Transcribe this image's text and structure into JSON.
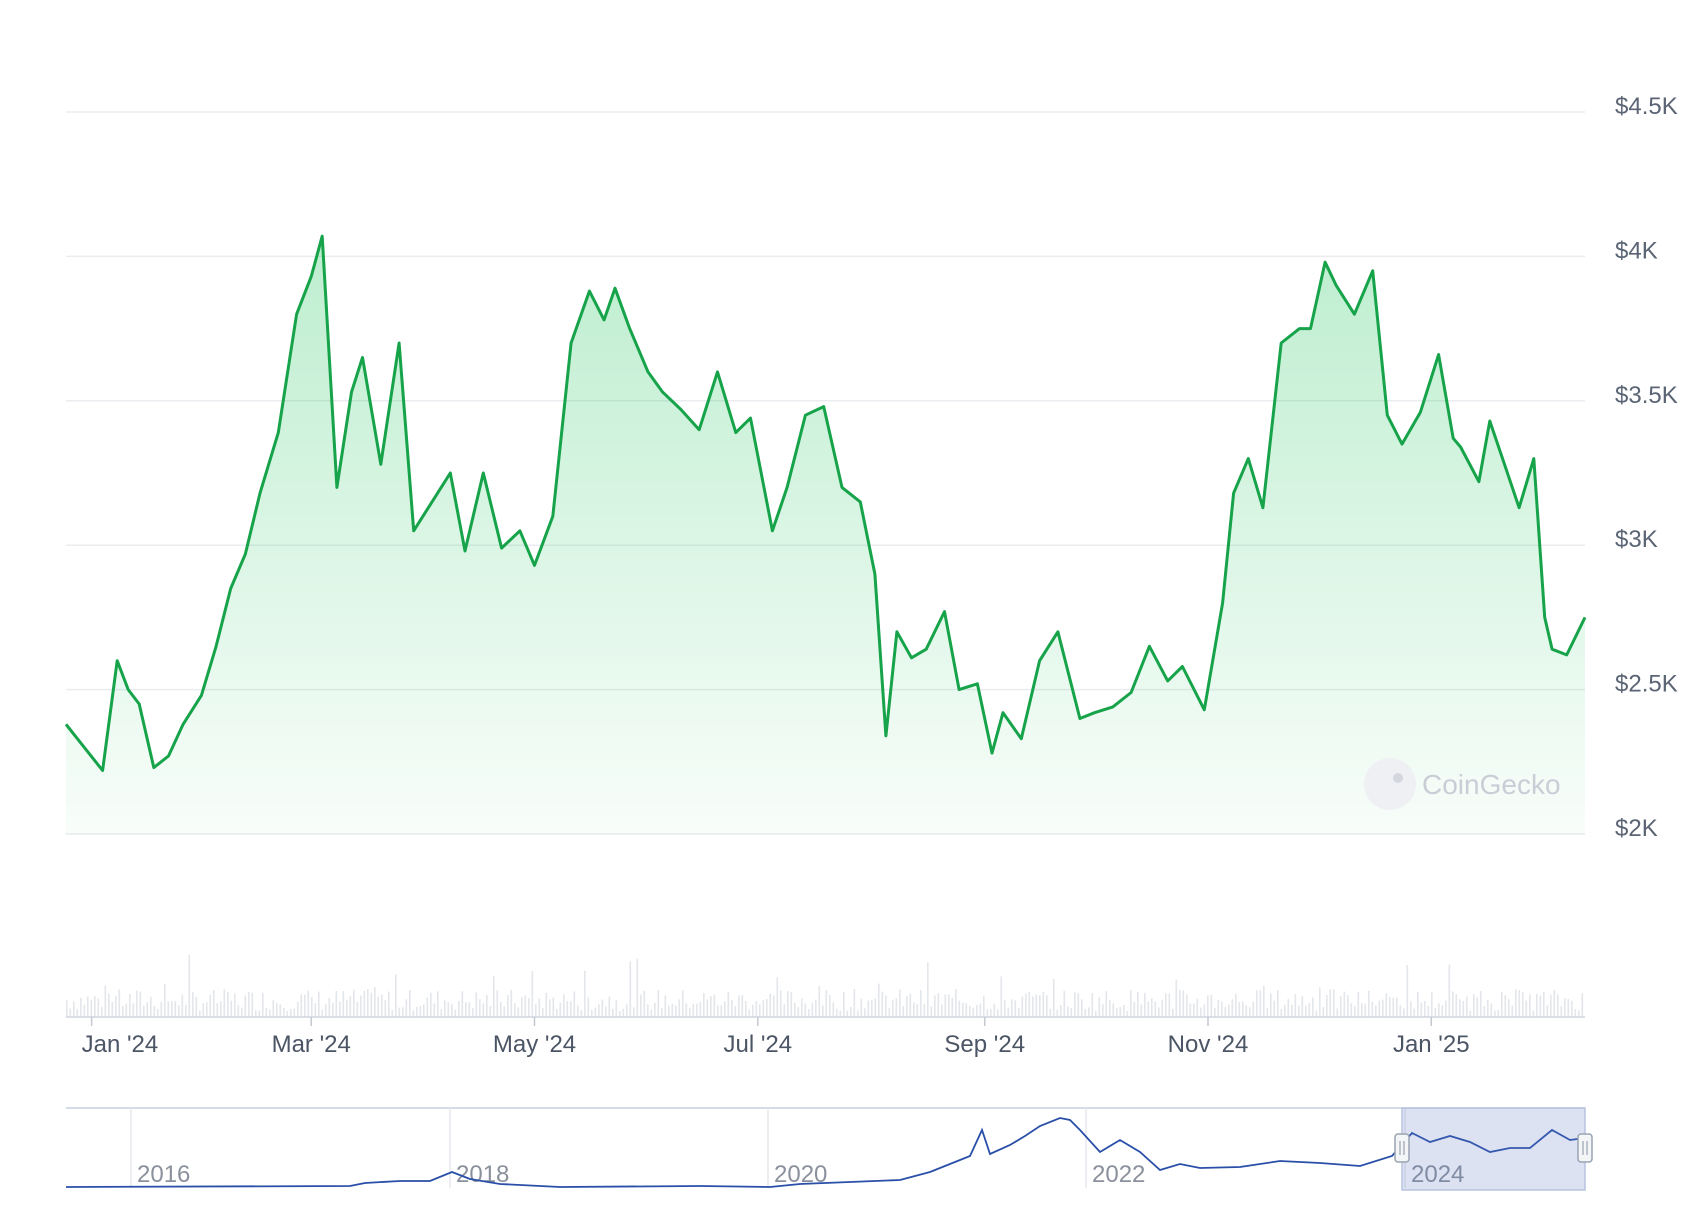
{
  "chart_data": {
    "type": "area",
    "y_axis": {
      "ticks": [
        "$2K",
        "$2.5K",
        "$3K",
        "$3.5K",
        "$4K",
        "$4.5K"
      ],
      "tick_values": [
        2000,
        2500,
        3000,
        3500,
        4000,
        4500
      ],
      "range": [
        2000,
        4500
      ],
      "position": "right",
      "grid": true
    },
    "x_axis": {
      "ticks": [
        "Jan '24",
        "Mar '24",
        "May '24",
        "Jul '24",
        "Sep '24",
        "Nov '24",
        "Jan '25"
      ],
      "tick_dates": [
        "2024-01-01",
        "2024-03-01",
        "2024-05-01",
        "2024-07-01",
        "2024-09-01",
        "2024-11-01",
        "2025-01-01"
      ],
      "range": [
        "2023-12-25",
        "2025-02-12"
      ]
    },
    "series": [
      {
        "color": "#16a34a",
        "fill": "#22c55e",
        "x": [
          "2023-12-25",
          "2023-12-30",
          "2024-01-04",
          "2024-01-08",
          "2024-01-11",
          "2024-01-14",
          "2024-01-18",
          "2024-01-22",
          "2024-01-26",
          "2024-01-31",
          "2024-02-04",
          "2024-02-08",
          "2024-02-12",
          "2024-02-16",
          "2024-02-21",
          "2024-02-26",
          "2024-03-01",
          "2024-03-04",
          "2024-03-08",
          "2024-03-12",
          "2024-03-15",
          "2024-03-20",
          "2024-03-25",
          "2024-03-29",
          "2024-04-03",
          "2024-04-08",
          "2024-04-12",
          "2024-04-17",
          "2024-04-22",
          "2024-04-27",
          "2024-05-01",
          "2024-05-06",
          "2024-05-11",
          "2024-05-16",
          "2024-05-20",
          "2024-05-23",
          "2024-05-27",
          "2024-06-01",
          "2024-06-05",
          "2024-06-10",
          "2024-06-15",
          "2024-06-20",
          "2024-06-25",
          "2024-06-29",
          "2024-07-05",
          "2024-07-09",
          "2024-07-14",
          "2024-07-19",
          "2024-07-24",
          "2024-07-29",
          "2024-08-02",
          "2024-08-05",
          "2024-08-08",
          "2024-08-12",
          "2024-08-16",
          "2024-08-21",
          "2024-08-25",
          "2024-08-30",
          "2024-09-03",
          "2024-09-06",
          "2024-09-11",
          "2024-09-16",
          "2024-09-21",
          "2024-09-27",
          "2024-10-01",
          "2024-10-06",
          "2024-10-11",
          "2024-10-16",
          "2024-10-21",
          "2024-10-25",
          "2024-10-31",
          "2024-11-05",
          "2024-11-08",
          "2024-11-12",
          "2024-11-16",
          "2024-11-21",
          "2024-11-26",
          "2024-11-29",
          "2024-12-03",
          "2024-12-06",
          "2024-12-11",
          "2024-12-16",
          "2024-12-20",
          "2024-12-24",
          "2024-12-29",
          "2025-01-03",
          "2025-01-07",
          "2025-01-09",
          "2025-01-14",
          "2025-01-17",
          "2025-01-21",
          "2025-01-25",
          "2025-01-29",
          "2025-02-01",
          "2025-02-03",
          "2025-02-07",
          "2025-02-12"
        ],
        "y": [
          2380,
          2300,
          2220,
          2600,
          2500,
          2450,
          2230,
          2270,
          2380,
          2480,
          2650,
          2850,
          2970,
          3180,
          3390,
          3800,
          3930,
          4070,
          3200,
          3530,
          3650,
          3280,
          3700,
          3050,
          3150,
          3250,
          2980,
          3250,
          2990,
          3050,
          2930,
          3100,
          3700,
          3880,
          3780,
          3890,
          3750,
          3600,
          3530,
          3470,
          3400,
          3600,
          3390,
          3440,
          3050,
          3200,
          3450,
          3480,
          3200,
          3150,
          2900,
          2340,
          2700,
          2610,
          2640,
          2770,
          2500,
          2520,
          2280,
          2420,
          2330,
          2600,
          2700,
          2400,
          2420,
          2440,
          2490,
          2650,
          2530,
          2580,
          2430,
          2800,
          3180,
          3300,
          3130,
          3700,
          3750,
          3750,
          3980,
          3900,
          3800,
          3950,
          3450,
          3350,
          3460,
          3660,
          3370,
          3340,
          3220,
          3430,
          3280,
          3130,
          3300,
          2750,
          2640,
          2620,
          2750
        ]
      }
    ],
    "volume_bars": true,
    "navigator": {
      "ticks": [
        "2016",
        "2018",
        "2020",
        "2022",
        "2024"
      ],
      "selected_range": [
        "2023-12-25",
        "2025-02-12"
      ]
    },
    "watermark": "CoinGecko"
  }
}
